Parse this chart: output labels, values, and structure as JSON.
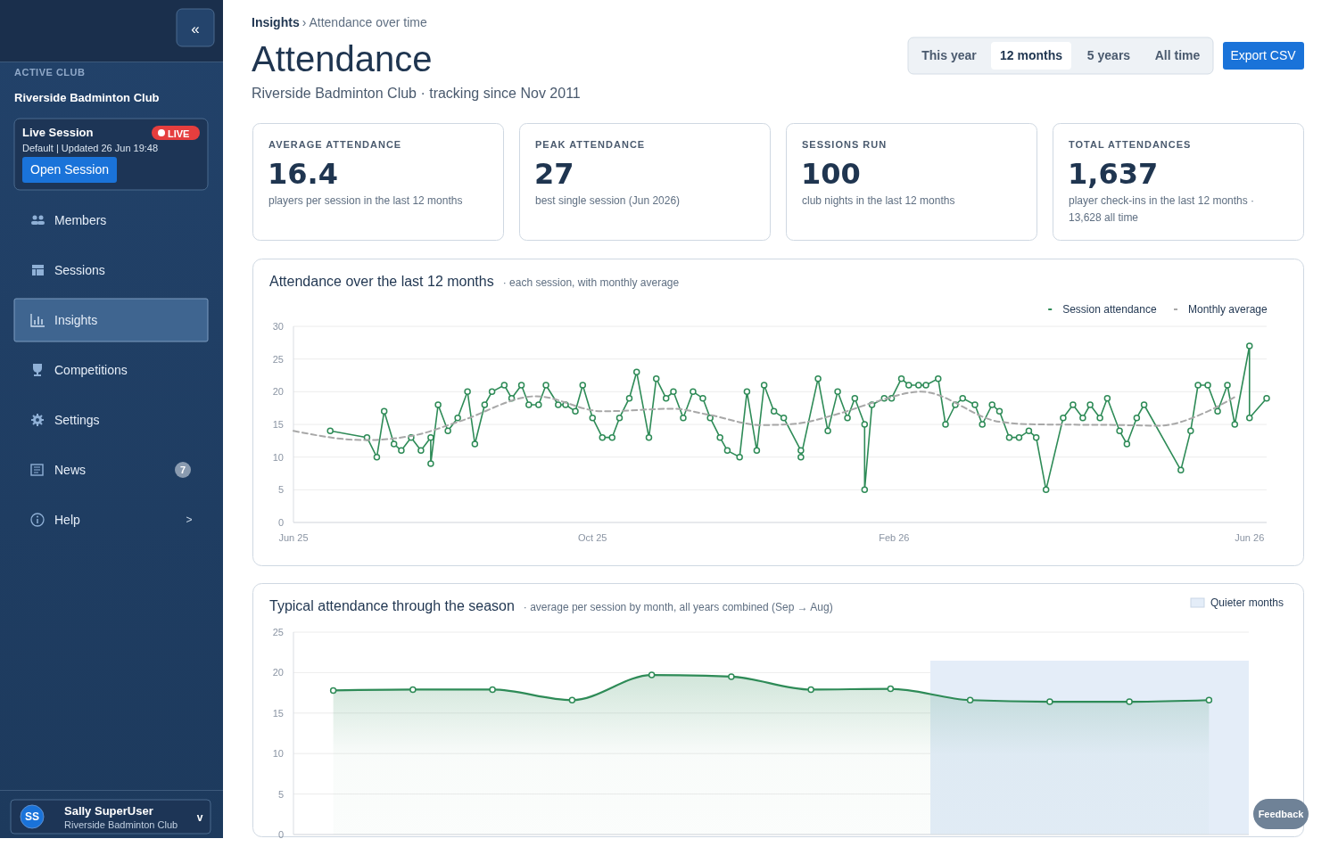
{
  "chart_data": [
    {
      "type": "other",
      "title": "Attendance",
      "subtitle": "Riverside Badminton Club · tracking since Nov 2011",
      "annotations": [
        "«",
        "ACTIVE CLUB",
        "Riverside Badminton Club",
        "Live Session",
        "LIVE",
        "Default | Updated 26 Jun 19:48",
        "Open Session",
        "Members",
        "Sessions",
        "Insights",
        "Competitions",
        "Settings",
        "News",
        "7",
        "Help",
        ">",
        "SS",
        "Sally SuperUser",
        "Riverside Badminton Club",
        "v",
        "Insights",
        "› Attendance over time",
        "This year",
        "12 months",
        "5 years",
        "All time",
        "Export CSV",
        "AVERAGE ATTENDANCE",
        "16.4",
        "players per session in the last 12 months",
        "PEAK ATTENDANCE",
        "27",
        "best single session (Jun 2026)",
        "SESSIONS RUN",
        "100",
        "club nights in the last 12 months",
        "TOTAL ATTENDANCES",
        "1,637",
        "player check-ins in the last 12 months ·",
        "13,628 all time",
        "Feedback"
      ]
    },
    {
      "type": "line",
      "title": "Attendance over the last 12 months",
      "subtitle": "· each session, with monthly average",
      "xlim": [
        "2025-06-01",
        "2026-07-03"
      ],
      "xticks": [
        {
          "value": "2025-06-01",
          "label": "Jun 25"
        },
        {
          "value": "2025-10-01",
          "label": "Oct 25"
        },
        {
          "value": "2026-02-01",
          "label": "Feb 26"
        },
        {
          "value": "2026-06-26",
          "label": "Jun 26"
        }
      ],
      "ylim": [
        0,
        30
      ],
      "yticks": [
        0,
        5,
        10,
        15,
        20,
        25,
        30
      ],
      "grid": "y",
      "legend": "top right",
      "marker": "circle",
      "series": [
        {
          "name": "Session attendance",
          "color": "#2e8b57",
          "x": [
            "2025-06-16",
            "2025-07-01",
            "2025-07-05",
            "2025-07-08",
            "2025-07-12",
            "2025-07-15",
            "2025-07-19",
            "2025-07-23",
            "2025-07-27",
            "2025-07-27",
            "2025-07-30",
            "2025-08-03",
            "2025-08-07",
            "2025-08-11",
            "2025-08-14",
            "2025-08-18",
            "2025-08-21",
            "2025-08-26",
            "2025-08-29",
            "2025-09-02",
            "2025-09-05",
            "2025-09-09",
            "2025-09-12",
            "2025-09-17",
            "2025-09-20",
            "2025-09-24",
            "2025-09-27",
            "2025-10-01",
            "2025-10-05",
            "2025-10-09",
            "2025-10-12",
            "2025-10-16",
            "2025-10-19",
            "2025-10-24",
            "2025-10-27",
            "2025-10-31",
            "2025-11-03",
            "2025-11-07",
            "2025-11-11",
            "2025-11-15",
            "2025-11-18",
            "2025-11-22",
            "2025-11-25",
            "2025-11-30",
            "2025-12-03",
            "2025-12-07",
            "2025-12-10",
            "2025-12-14",
            "2025-12-18",
            "2025-12-25",
            "2025-12-25",
            "2026-01-01",
            "2026-01-05",
            "2026-01-09",
            "2026-01-13",
            "2026-01-16",
            "2026-01-20",
            "2026-01-20",
            "2026-01-23",
            "2026-01-28",
            "2026-01-31",
            "2026-02-04",
            "2026-02-07",
            "2026-02-11",
            "2026-02-14",
            "2026-02-19",
            "2026-02-22",
            "2026-02-26",
            "2026-03-01",
            "2026-03-06",
            "2026-03-09",
            "2026-03-13",
            "2026-03-16",
            "2026-03-20",
            "2026-03-24",
            "2026-03-28",
            "2026-03-31",
            "2026-04-04",
            "2026-04-11",
            "2026-04-15",
            "2026-04-19",
            "2026-04-22",
            "2026-04-26",
            "2026-04-29",
            "2026-05-04",
            "2026-05-07",
            "2026-05-11",
            "2026-05-14",
            "2026-05-29",
            "2026-06-02",
            "2026-06-05",
            "2026-06-09",
            "2026-06-13",
            "2026-06-17",
            "2026-06-20",
            "2026-06-26",
            "2026-06-26",
            "2026-07-03"
          ],
          "values": [
            14,
            13,
            10,
            17,
            12,
            11,
            13,
            11,
            13,
            9,
            18,
            14,
            16,
            20,
            12,
            18,
            20,
            21,
            19,
            21,
            18,
            18,
            21,
            18,
            18,
            17,
            21,
            16,
            13,
            13,
            16,
            19,
            23,
            13,
            22,
            19,
            20,
            16,
            20,
            19,
            16,
            13,
            11,
            10,
            20,
            11,
            21,
            17,
            16,
            11,
            10,
            22,
            14,
            20,
            16,
            19,
            15,
            5,
            18,
            19,
            19,
            22,
            21,
            21,
            21,
            22,
            15,
            18,
            19,
            18,
            15,
            18,
            17,
            13,
            13,
            14,
            13,
            5,
            16,
            18,
            16,
            18,
            16,
            19,
            14,
            12,
            16,
            18,
            8,
            14,
            21,
            21,
            17,
            21,
            15,
            27,
            16,
            19
          ]
        },
        {
          "name": "Monthly average",
          "color": "#a8a8a8",
          "marker": "none",
          "line_style": "dashed",
          "x": [
            "2025-06-01",
            "2025-06-30",
            "2025-07-20",
            "2025-08-08",
            "2025-09-08",
            "2025-10-05",
            "2025-11-03",
            "2025-11-17",
            "2025-12-09",
            "2025-12-20",
            "2026-01-10",
            "2026-01-24",
            "2026-02-12",
            "2026-03-16",
            "2026-03-31",
            "2026-05-04",
            "2026-05-20",
            "2026-06-09",
            "2026-06-21"
          ],
          "values": [
            14,
            12.6,
            13.3,
            15.5,
            19.3,
            17,
            17.4,
            16.5,
            14.9,
            15,
            16.7,
            18.4,
            20,
            15.4,
            15,
            14.9,
            14.8,
            17,
            19.4
          ]
        }
      ]
    },
    {
      "type": "area",
      "title": "Typical attendance through the season",
      "subtitle": "· average per session by month, all years combined (Sep → Aug)",
      "categories": [
        null,
        null,
        null,
        null,
        null,
        null,
        null,
        null,
        null,
        null,
        null,
        null
      ],
      "ylim": [
        0,
        25
      ],
      "yticks": [
        0,
        5,
        10,
        15,
        20,
        25
      ],
      "grid": "y",
      "marker": "circle",
      "tick_labels": "y",
      "annotations": [
        "Quieter months"
      ],
      "series": [
        {
          "color": "#2e8b57",
          "values": [
            17.8,
            17.9,
            17.9,
            16.6,
            19.7,
            19.5,
            17.9,
            18.0,
            16.6,
            16.4,
            16.4,
            16.6
          ]
        }
      ]
    }
  ]
}
